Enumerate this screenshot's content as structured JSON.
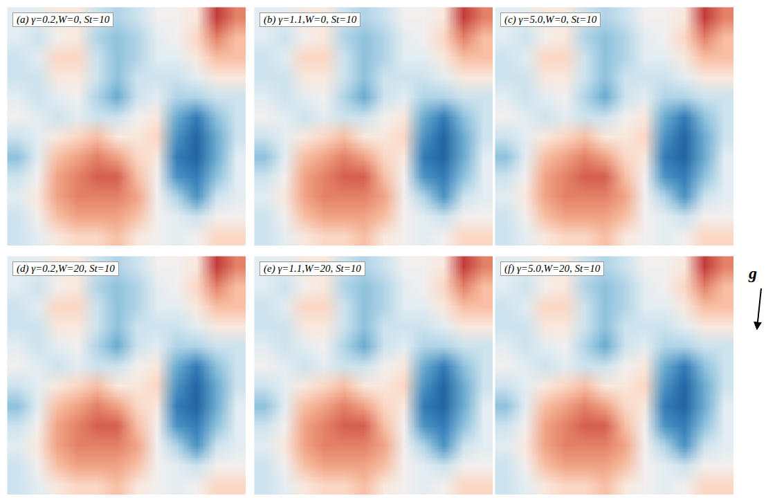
{
  "chart_data": [
    {
      "type": "heatmap",
      "title": "(a) γ=0.2,W=0, St=10",
      "tick_labels": false,
      "zlim": [
        -1,
        1
      ],
      "cells": [
        [
          -0.1,
          -0.1,
          0.1,
          0.1,
          -0.2,
          -0.3,
          -0.2,
          0,
          0,
          0.1,
          0.7,
          0.5
        ],
        [
          -0.1,
          -0.2,
          0,
          0.1,
          -0.3,
          -0.4,
          -0.3,
          -0.1,
          0,
          0.2,
          0.5,
          0.3
        ],
        [
          -0.2,
          -0.1,
          0.2,
          0.2,
          -0.2,
          -0.4,
          -0.3,
          -0.1,
          -0.1,
          0.1,
          0.3,
          0.3
        ],
        [
          -0.2,
          -0.2,
          0.1,
          0.1,
          -0.2,
          -0.4,
          -0.2,
          -0.2,
          -0.2,
          -0.1,
          0.1,
          0.1
        ],
        [
          -0.1,
          -0.2,
          -0.1,
          0,
          -0.3,
          -0.5,
          -0.2,
          -0.1,
          -0.3,
          -0.3,
          -0.2,
          -0.2
        ],
        [
          0,
          -0.1,
          -0.2,
          -0.1,
          -0.2,
          -0.2,
          0,
          0.1,
          -0.5,
          -0.7,
          -0.4,
          -0.2
        ],
        [
          -0.2,
          -0.1,
          0.1,
          0.2,
          0.3,
          0.1,
          0.1,
          0.2,
          -0.6,
          -0.8,
          -0.5,
          -0.2
        ],
        [
          -0.4,
          -0.1,
          0.3,
          0.4,
          0.5,
          0.4,
          0.2,
          0.1,
          -0.7,
          -0.8,
          -0.5,
          -0.1
        ],
        [
          -0.2,
          0,
          0.4,
          0.5,
          0.6,
          0.6,
          0.3,
          0,
          -0.6,
          -0.7,
          -0.4,
          -0.1
        ],
        [
          -0.1,
          0.1,
          0.4,
          0.5,
          0.5,
          0.5,
          0.4,
          0,
          -0.3,
          -0.6,
          -0.2,
          -0.1
        ],
        [
          -0.2,
          0,
          0.3,
          0.4,
          0.4,
          0.4,
          0.3,
          0,
          -0.1,
          -0.2,
          0,
          0
        ],
        [
          -0.2,
          -0.1,
          0.1,
          0.2,
          0.2,
          0.3,
          0.1,
          0,
          -0.1,
          0,
          0.2,
          0.2
        ]
      ]
    },
    {
      "type": "heatmap",
      "title": "(b) γ=1.1,W=0, St=10",
      "tick_labels": false,
      "zlim": [
        -1,
        1
      ],
      "cells": [
        [
          -0.1,
          -0.1,
          0.1,
          0.1,
          -0.2,
          -0.3,
          -0.2,
          0,
          0,
          0.1,
          0.7,
          0.5
        ],
        [
          -0.1,
          -0.2,
          0,
          0.1,
          -0.3,
          -0.4,
          -0.3,
          -0.1,
          0,
          0.2,
          0.5,
          0.3
        ],
        [
          -0.2,
          -0.1,
          0.2,
          0.2,
          -0.2,
          -0.4,
          -0.3,
          -0.1,
          -0.1,
          0.1,
          0.3,
          0.3
        ],
        [
          -0.2,
          -0.2,
          0.1,
          0.1,
          -0.2,
          -0.4,
          -0.2,
          -0.2,
          -0.2,
          -0.1,
          0.1,
          0.1
        ],
        [
          -0.1,
          -0.2,
          -0.1,
          0,
          -0.3,
          -0.5,
          -0.2,
          -0.1,
          -0.3,
          -0.3,
          -0.2,
          -0.2
        ],
        [
          0,
          -0.1,
          -0.2,
          -0.1,
          -0.2,
          -0.2,
          0,
          0.1,
          -0.5,
          -0.7,
          -0.4,
          -0.2
        ],
        [
          -0.2,
          -0.1,
          0.1,
          0.2,
          0.3,
          0.1,
          0.1,
          0.2,
          -0.6,
          -0.8,
          -0.5,
          -0.2
        ],
        [
          -0.4,
          -0.1,
          0.3,
          0.4,
          0.5,
          0.4,
          0.2,
          0.1,
          -0.7,
          -0.8,
          -0.5,
          -0.1
        ],
        [
          -0.2,
          0,
          0.4,
          0.5,
          0.6,
          0.6,
          0.3,
          0,
          -0.6,
          -0.7,
          -0.4,
          -0.1
        ],
        [
          -0.1,
          0.1,
          0.4,
          0.5,
          0.5,
          0.5,
          0.4,
          0,
          -0.3,
          -0.6,
          -0.2,
          -0.1
        ],
        [
          -0.2,
          0,
          0.3,
          0.4,
          0.4,
          0.4,
          0.3,
          0,
          -0.1,
          -0.2,
          0,
          0
        ],
        [
          -0.2,
          -0.1,
          0.1,
          0.2,
          0.2,
          0.3,
          0.1,
          0,
          -0.1,
          0,
          0.2,
          0.2
        ]
      ]
    },
    {
      "type": "heatmap",
      "title": "(c) γ=5.0,W=0, St=10",
      "tick_labels": false,
      "zlim": [
        -1,
        1
      ],
      "cells": [
        [
          -0.1,
          -0.1,
          0.1,
          0.1,
          -0.2,
          -0.3,
          -0.2,
          0,
          0,
          0.1,
          0.7,
          0.5
        ],
        [
          -0.1,
          -0.2,
          0,
          0.1,
          -0.3,
          -0.4,
          -0.3,
          -0.1,
          0,
          0.2,
          0.5,
          0.3
        ],
        [
          -0.2,
          -0.1,
          0.2,
          0.2,
          -0.2,
          -0.4,
          -0.3,
          -0.1,
          -0.1,
          0.1,
          0.3,
          0.3
        ],
        [
          -0.2,
          -0.2,
          0.1,
          0.1,
          -0.2,
          -0.4,
          -0.2,
          -0.2,
          -0.2,
          -0.1,
          0.1,
          0.1
        ],
        [
          -0.1,
          -0.2,
          -0.1,
          0,
          -0.3,
          -0.5,
          -0.2,
          -0.1,
          -0.3,
          -0.3,
          -0.2,
          -0.2
        ],
        [
          0,
          -0.1,
          -0.2,
          -0.1,
          -0.2,
          -0.2,
          0,
          0.1,
          -0.5,
          -0.7,
          -0.4,
          -0.2
        ],
        [
          -0.2,
          -0.1,
          0.1,
          0.2,
          0.3,
          0.1,
          0.1,
          0.2,
          -0.6,
          -0.8,
          -0.5,
          -0.2
        ],
        [
          -0.4,
          -0.1,
          0.3,
          0.4,
          0.5,
          0.4,
          0.2,
          0.1,
          -0.7,
          -0.8,
          -0.5,
          -0.1
        ],
        [
          -0.2,
          0,
          0.4,
          0.5,
          0.6,
          0.6,
          0.3,
          0,
          -0.6,
          -0.7,
          -0.4,
          -0.1
        ],
        [
          -0.1,
          0.1,
          0.4,
          0.5,
          0.5,
          0.5,
          0.4,
          0,
          -0.3,
          -0.6,
          -0.2,
          -0.1
        ],
        [
          -0.2,
          0,
          0.3,
          0.4,
          0.4,
          0.4,
          0.3,
          0,
          -0.1,
          -0.2,
          0,
          0
        ],
        [
          -0.2,
          -0.1,
          0.1,
          0.2,
          0.2,
          0.3,
          0.1,
          0,
          -0.1,
          0,
          0.2,
          0.2
        ]
      ]
    },
    {
      "type": "heatmap",
      "title": "(d) γ=0.2,W=20, St=10",
      "tick_labels": false,
      "zlim": [
        -1,
        1
      ],
      "cells": [
        [
          -0.1,
          -0.1,
          0.1,
          0.1,
          -0.2,
          -0.3,
          -0.2,
          0,
          0,
          0.1,
          0.7,
          0.5
        ],
        [
          -0.1,
          -0.2,
          0,
          0.1,
          -0.3,
          -0.4,
          -0.3,
          -0.1,
          0,
          0.2,
          0.5,
          0.3
        ],
        [
          -0.2,
          -0.1,
          0.2,
          0.2,
          -0.2,
          -0.4,
          -0.3,
          -0.1,
          -0.1,
          0.1,
          0.3,
          0.3
        ],
        [
          -0.2,
          -0.2,
          0.1,
          0.1,
          -0.2,
          -0.4,
          -0.2,
          -0.2,
          -0.2,
          -0.1,
          0.1,
          0.1
        ],
        [
          -0.1,
          -0.2,
          -0.1,
          0,
          -0.3,
          -0.5,
          -0.2,
          -0.1,
          -0.3,
          -0.3,
          -0.2,
          -0.2
        ],
        [
          0,
          -0.1,
          -0.2,
          -0.1,
          -0.2,
          -0.2,
          0,
          0.1,
          -0.5,
          -0.7,
          -0.4,
          -0.2
        ],
        [
          -0.2,
          -0.1,
          0.1,
          0.2,
          0.3,
          0.1,
          0.1,
          0.2,
          -0.6,
          -0.8,
          -0.5,
          -0.2
        ],
        [
          -0.4,
          -0.1,
          0.3,
          0.4,
          0.5,
          0.4,
          0.2,
          0.1,
          -0.7,
          -0.8,
          -0.5,
          -0.1
        ],
        [
          -0.2,
          0,
          0.4,
          0.5,
          0.6,
          0.6,
          0.3,
          0,
          -0.6,
          -0.7,
          -0.4,
          -0.1
        ],
        [
          -0.1,
          0.1,
          0.4,
          0.5,
          0.5,
          0.5,
          0.4,
          0,
          -0.3,
          -0.6,
          -0.2,
          -0.1
        ],
        [
          -0.2,
          0,
          0.3,
          0.4,
          0.4,
          0.4,
          0.3,
          0,
          -0.1,
          -0.2,
          0,
          0
        ],
        [
          -0.2,
          -0.1,
          0.1,
          0.2,
          0.2,
          0.3,
          0.1,
          0,
          -0.1,
          0,
          0.2,
          0.2
        ]
      ]
    },
    {
      "type": "heatmap",
      "title": "(e) γ=1.1,W=20, St=10",
      "tick_labels": false,
      "zlim": [
        -1,
        1
      ],
      "cells": [
        [
          -0.1,
          -0.1,
          0.1,
          0.1,
          -0.2,
          -0.3,
          -0.2,
          0,
          0,
          0.1,
          0.7,
          0.5
        ],
        [
          -0.1,
          -0.2,
          0,
          0.1,
          -0.3,
          -0.4,
          -0.3,
          -0.1,
          0,
          0.2,
          0.5,
          0.3
        ],
        [
          -0.2,
          -0.1,
          0.2,
          0.2,
          -0.2,
          -0.4,
          -0.3,
          -0.1,
          -0.1,
          0.1,
          0.3,
          0.3
        ],
        [
          -0.2,
          -0.2,
          0.1,
          0.1,
          -0.2,
          -0.4,
          -0.2,
          -0.2,
          -0.2,
          -0.1,
          0.1,
          0.1
        ],
        [
          -0.1,
          -0.2,
          -0.1,
          0,
          -0.3,
          -0.5,
          -0.2,
          -0.1,
          -0.3,
          -0.3,
          -0.2,
          -0.2
        ],
        [
          0,
          -0.1,
          -0.2,
          -0.1,
          -0.2,
          -0.2,
          0,
          0.1,
          -0.5,
          -0.7,
          -0.4,
          -0.2
        ],
        [
          -0.2,
          -0.1,
          0.1,
          0.2,
          0.3,
          0.1,
          0.1,
          0.2,
          -0.6,
          -0.8,
          -0.5,
          -0.2
        ],
        [
          -0.4,
          -0.1,
          0.3,
          0.4,
          0.5,
          0.4,
          0.2,
          0.1,
          -0.7,
          -0.8,
          -0.5,
          -0.1
        ],
        [
          -0.2,
          0,
          0.4,
          0.5,
          0.6,
          0.6,
          0.3,
          0,
          -0.6,
          -0.7,
          -0.4,
          -0.1
        ],
        [
          -0.1,
          0.1,
          0.4,
          0.5,
          0.5,
          0.5,
          0.4,
          0,
          -0.3,
          -0.6,
          -0.2,
          -0.1
        ],
        [
          -0.2,
          0,
          0.3,
          0.4,
          0.4,
          0.4,
          0.3,
          0,
          -0.1,
          -0.2,
          0,
          0
        ],
        [
          -0.2,
          -0.1,
          0.1,
          0.2,
          0.2,
          0.3,
          0.1,
          0,
          -0.1,
          0,
          0.2,
          0.2
        ]
      ]
    },
    {
      "type": "heatmap",
      "title": "(f) γ=5.0,W=20, St=10",
      "tick_labels": false,
      "zlim": [
        -1,
        1
      ],
      "cells": [
        [
          -0.1,
          -0.1,
          0.1,
          0.1,
          -0.2,
          -0.3,
          -0.2,
          0,
          0,
          0.1,
          0.7,
          0.5
        ],
        [
          -0.1,
          -0.2,
          0,
          0.1,
          -0.3,
          -0.4,
          -0.3,
          -0.1,
          0,
          0.2,
          0.5,
          0.3
        ],
        [
          -0.2,
          -0.1,
          0.2,
          0.2,
          -0.2,
          -0.4,
          -0.3,
          -0.1,
          -0.1,
          0.1,
          0.3,
          0.3
        ],
        [
          -0.2,
          -0.2,
          0.1,
          0.1,
          -0.2,
          -0.4,
          -0.2,
          -0.2,
          -0.2,
          -0.1,
          0.1,
          0.1
        ],
        [
          -0.1,
          -0.2,
          -0.1,
          0,
          -0.3,
          -0.5,
          -0.2,
          -0.1,
          -0.3,
          -0.3,
          -0.2,
          -0.2
        ],
        [
          0,
          -0.1,
          -0.2,
          -0.1,
          -0.2,
          -0.2,
          0,
          0.1,
          -0.5,
          -0.7,
          -0.4,
          -0.2
        ],
        [
          -0.2,
          -0.1,
          0.1,
          0.2,
          0.3,
          0.1,
          0.1,
          0.2,
          -0.6,
          -0.8,
          -0.5,
          -0.2
        ],
        [
          -0.4,
          -0.1,
          0.3,
          0.4,
          0.5,
          0.4,
          0.2,
          0.1,
          -0.7,
          -0.8,
          -0.5,
          -0.1
        ],
        [
          -0.2,
          0,
          0.4,
          0.5,
          0.6,
          0.6,
          0.3,
          0,
          -0.6,
          -0.7,
          -0.4,
          -0.1
        ],
        [
          -0.1,
          0.1,
          0.4,
          0.5,
          0.5,
          0.5,
          0.4,
          0,
          -0.3,
          -0.6,
          -0.2,
          -0.1
        ],
        [
          -0.2,
          0,
          0.3,
          0.4,
          0.4,
          0.4,
          0.3,
          0,
          -0.1,
          -0.2,
          0,
          0
        ],
        [
          -0.2,
          -0.1,
          0.1,
          0.2,
          0.2,
          0.3,
          0.1,
          0,
          -0.1,
          0,
          0.2,
          0.2
        ]
      ]
    }
  ],
  "gravity_label": "g"
}
